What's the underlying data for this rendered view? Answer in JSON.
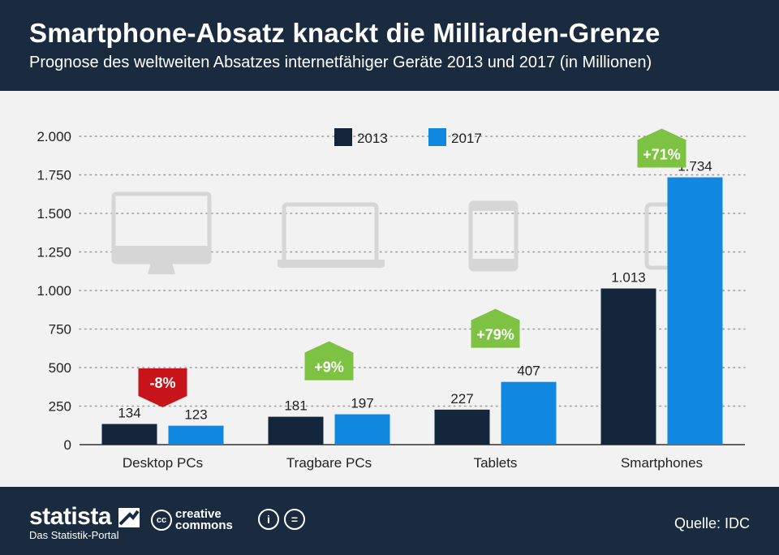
{
  "header": {
    "title": "Smartphone-Absatz knackt die Milliarden-Grenze",
    "subtitle": "Prognose des weltweiten Absatzes internetfähiger Geräte 2013 und 2017 (in Millionen)"
  },
  "footer": {
    "brand_name": "statista",
    "brand_tagline": "Das Statistik-Portal",
    "cc_mark": "cc",
    "cc_label_1": "creative",
    "cc_label_2": "commons",
    "by_mark": "i",
    "nd_mark": "=",
    "source": "Quelle: IDC"
  },
  "colors": {
    "header_bg": "#1a2b40",
    "series_2013": "#13263b",
    "series_2017": "#1188e0",
    "badge_positive": "#7dc242",
    "badge_negative": "#c8151b",
    "device_icon": "#d6d6d6"
  },
  "icons": [
    "desktop-monitor-icon",
    "laptop-icon",
    "tablet-icon",
    "smartphone-icon",
    "statista-logo-icon",
    "creative-commons-icon",
    "attribution-icon",
    "no-derivatives-icon"
  ],
  "chart_data": {
    "type": "bar",
    "categories": [
      "Desktop PCs",
      "Tragbare PCs",
      "Tablets",
      "Smartphones"
    ],
    "series": [
      {
        "name": "2013",
        "values": [
          134,
          181,
          227,
          1013
        ],
        "labels": [
          "134",
          "181",
          "227",
          "1.013"
        ]
      },
      {
        "name": "2017",
        "values": [
          123,
          197,
          407,
          1734
        ],
        "labels": [
          "123",
          "197",
          "407",
          "1.734"
        ]
      }
    ],
    "changes": [
      "-8%",
      "+9%",
      "+79%",
      "+71%"
    ],
    "ylim": [
      0,
      2000
    ],
    "yticks": [
      0,
      250,
      500,
      750,
      1000,
      1250,
      1500,
      1750,
      2000
    ],
    "ytick_labels": [
      "0",
      "250",
      "500",
      "750",
      "1.000",
      "1.250",
      "1.500",
      "1.750",
      "2.000"
    ],
    "grid": true,
    "legend_position": "top-center"
  }
}
